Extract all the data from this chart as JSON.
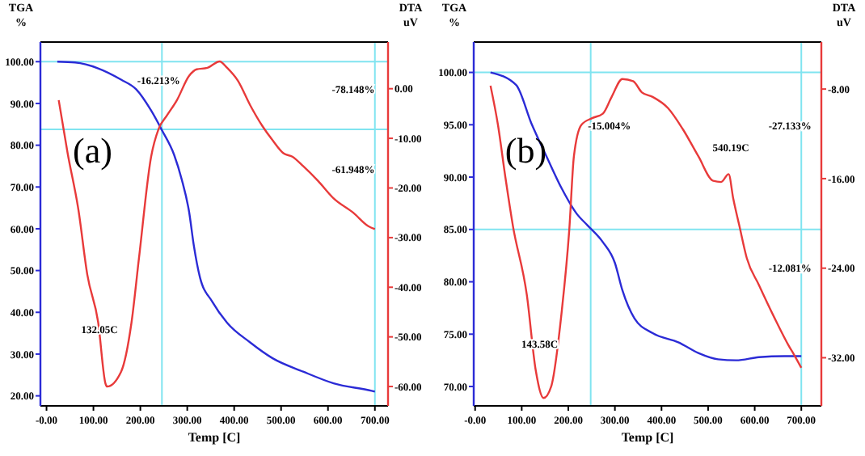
{
  "chart_data": [
    {
      "type": "line",
      "title": "(a)",
      "xlabel": "Temp [C]",
      "ylabel": "TGA %",
      "y2label": "DTA uV",
      "xlim": [
        -13,
        728
      ],
      "xticks": [
        {
          "value": 0,
          "label": "-0.00"
        },
        {
          "value": 100,
          "label": "100.00"
        },
        {
          "value": 200,
          "label": "200.00"
        },
        {
          "value": 300,
          "label": "300.00"
        },
        {
          "value": 400,
          "label": "400.00"
        },
        {
          "value": 500,
          "label": "500.00"
        },
        {
          "value": 600,
          "label": "600.00"
        },
        {
          "value": 700,
          "label": "700.00"
        }
      ],
      "ylim": [
        17.6,
        104.7
      ],
      "yticks": [
        {
          "value": 20,
          "label": "20.00"
        },
        {
          "value": 30,
          "label": "30.00"
        },
        {
          "value": 40,
          "label": "40.00"
        },
        {
          "value": 50,
          "label": "50.00"
        },
        {
          "value": 60,
          "label": "60.00"
        },
        {
          "value": 70,
          "label": "70.00"
        },
        {
          "value": 80,
          "label": "80.00"
        },
        {
          "value": 90,
          "label": "90.00"
        },
        {
          "value": 100,
          "label": "100.00"
        }
      ],
      "y2lim": [
        -63.9,
        9.4
      ],
      "y2ticks": [
        {
          "value": -60,
          "label": "-60.00"
        },
        {
          "value": -50,
          "label": "-50.00"
        },
        {
          "value": -40,
          "label": "-40.00"
        },
        {
          "value": -30,
          "label": "-30.00"
        },
        {
          "value": -20,
          "label": "-20.00"
        },
        {
          "value": -10,
          "label": "-10.00"
        },
        {
          "value": 0,
          "label": "0.00"
        }
      ],
      "series": [
        {
          "color": "#2b2bd6",
          "x": [
            23,
            61,
            110,
            159,
            191,
            223,
            246,
            272,
            288,
            304,
            314,
            327,
            353,
            385,
            434,
            482,
            547,
            612,
            693,
            700
          ],
          "values": [
            100,
            99.8,
            98.4,
            95.7,
            93.4,
            88.3,
            83.6,
            77.7,
            71.9,
            64,
            56,
            48.4,
            42.6,
            37.5,
            32.8,
            29,
            25.8,
            23,
            21.2,
            21
          ]
        },
        {
          "color": "#e83a3a",
          "axis": "y2",
          "x": [
            26,
            45,
            68,
            87,
            110,
            126,
            129,
            159,
            181,
            197,
            223,
            239,
            256,
            278,
            304,
            320,
            343,
            369,
            385,
            408,
            434,
            460,
            482,
            505,
            524,
            547,
            579,
            612,
            654,
            686,
            700
          ],
          "values": [
            -2.3,
            -13,
            -24.4,
            -37.5,
            -47,
            -59.5,
            -60,
            -57,
            -47.2,
            -34.2,
            -13.7,
            -8.1,
            -5.5,
            -2.3,
            2.6,
            3.9,
            4.2,
            5.5,
            4.2,
            1.6,
            -3.3,
            -7.5,
            -10.4,
            -13,
            -13.7,
            -15.6,
            -18.6,
            -22.1,
            -25,
            -27.7,
            -28.3
          ]
        }
      ],
      "ref_lines": [
        {
          "axis": "x",
          "value": 246,
          "color": "#80e4f0"
        },
        {
          "axis": "x",
          "value": 700,
          "color": "#80e4f0"
        },
        {
          "axis": "y",
          "value": 100,
          "color": "#80e4f0"
        },
        {
          "axis": "y",
          "value": 83.787,
          "color": "#80e4f0"
        }
      ],
      "annotations": [
        "-16.213%",
        "-78.148%",
        "-61.948%",
        "132.05C"
      ]
    },
    {
      "type": "line",
      "title": "(b)",
      "xlabel": "Temp [C]",
      "ylabel": "TGA %",
      "y2label": "DTA uV",
      "xlim": [
        -3,
        743
      ],
      "xticks": [
        {
          "value": 0,
          "label": "-0.00"
        },
        {
          "value": 100,
          "label": "100.00"
        },
        {
          "value": 200,
          "label": "200.00"
        },
        {
          "value": 300,
          "label": "300.00"
        },
        {
          "value": 400,
          "label": "400.00"
        },
        {
          "value": 500,
          "label": "500.00"
        },
        {
          "value": 600,
          "label": "600.00"
        },
        {
          "value": 700,
          "label": "700.00"
        }
      ],
      "ylim": [
        68.15,
        102.9
      ],
      "yticks": [
        {
          "value": 70,
          "label": "70.00"
        },
        {
          "value": 75,
          "label": "75.00"
        },
        {
          "value": 80,
          "label": "80.00"
        },
        {
          "value": 85,
          "label": "85.00"
        },
        {
          "value": 90,
          "label": "90.00"
        },
        {
          "value": 95,
          "label": "95.00"
        },
        {
          "value": 100,
          "label": "100.00"
        }
      ],
      "y2lim": [
        -36.3,
        -3.8
      ],
      "y2ticks": [
        {
          "value": -32,
          "label": "-32.00"
        },
        {
          "value": -24,
          "label": "-24.00"
        },
        {
          "value": -16,
          "label": "-16.00"
        },
        {
          "value": -8,
          "label": "-8.00"
        }
      ],
      "series": [
        {
          "color": "#2b2bd6",
          "x": [
            33,
            88,
            121,
            153,
            186,
            218,
            241,
            274,
            300,
            316,
            342,
            381,
            437,
            479,
            521,
            560,
            609,
            664,
            700
          ],
          "values": [
            100,
            98.8,
            95.1,
            92,
            88.9,
            86.5,
            85.4,
            83.8,
            81.8,
            79.2,
            76.5,
            75.1,
            74.2,
            73.2,
            72.6,
            72.5,
            72.8,
            72.9,
            72.9
          ]
        },
        {
          "color": "#e83a3a",
          "axis": "y2",
          "x": [
            33,
            49,
            65,
            81,
            111,
            130,
            147,
            163,
            186,
            202,
            212,
            228,
            251,
            274,
            293,
            316,
            339,
            358,
            381,
            414,
            446,
            479,
            511,
            528,
            544,
            554,
            567,
            583,
            609,
            642,
            674,
            684,
            700
          ],
          "values": [
            -7.7,
            -11.2,
            -15.9,
            -20.2,
            -26.4,
            -33.1,
            -35.6,
            -34.6,
            -27.8,
            -20.6,
            -14,
            -11.2,
            -10.6,
            -10.2,
            -8.7,
            -7.1,
            -7.3,
            -8.3,
            -8.7,
            -9.7,
            -11.6,
            -14,
            -16.2,
            -16.3,
            -15.6,
            -17.8,
            -20.2,
            -23.1,
            -25.5,
            -28.4,
            -31,
            -31.7,
            -32.9
          ]
        }
      ],
      "ref_lines": [
        {
          "axis": "x",
          "value": 248,
          "color": "#80e4f0"
        },
        {
          "axis": "x",
          "value": 700,
          "color": "#80e4f0"
        },
        {
          "axis": "y",
          "value": 100,
          "color": "#80e4f0"
        },
        {
          "axis": "y",
          "value": 84.996,
          "color": "#80e4f0"
        }
      ],
      "annotations": [
        "-15.004%",
        "-27.133%",
        "540.19C",
        "-12.081%",
        "143.58C"
      ]
    }
  ]
}
